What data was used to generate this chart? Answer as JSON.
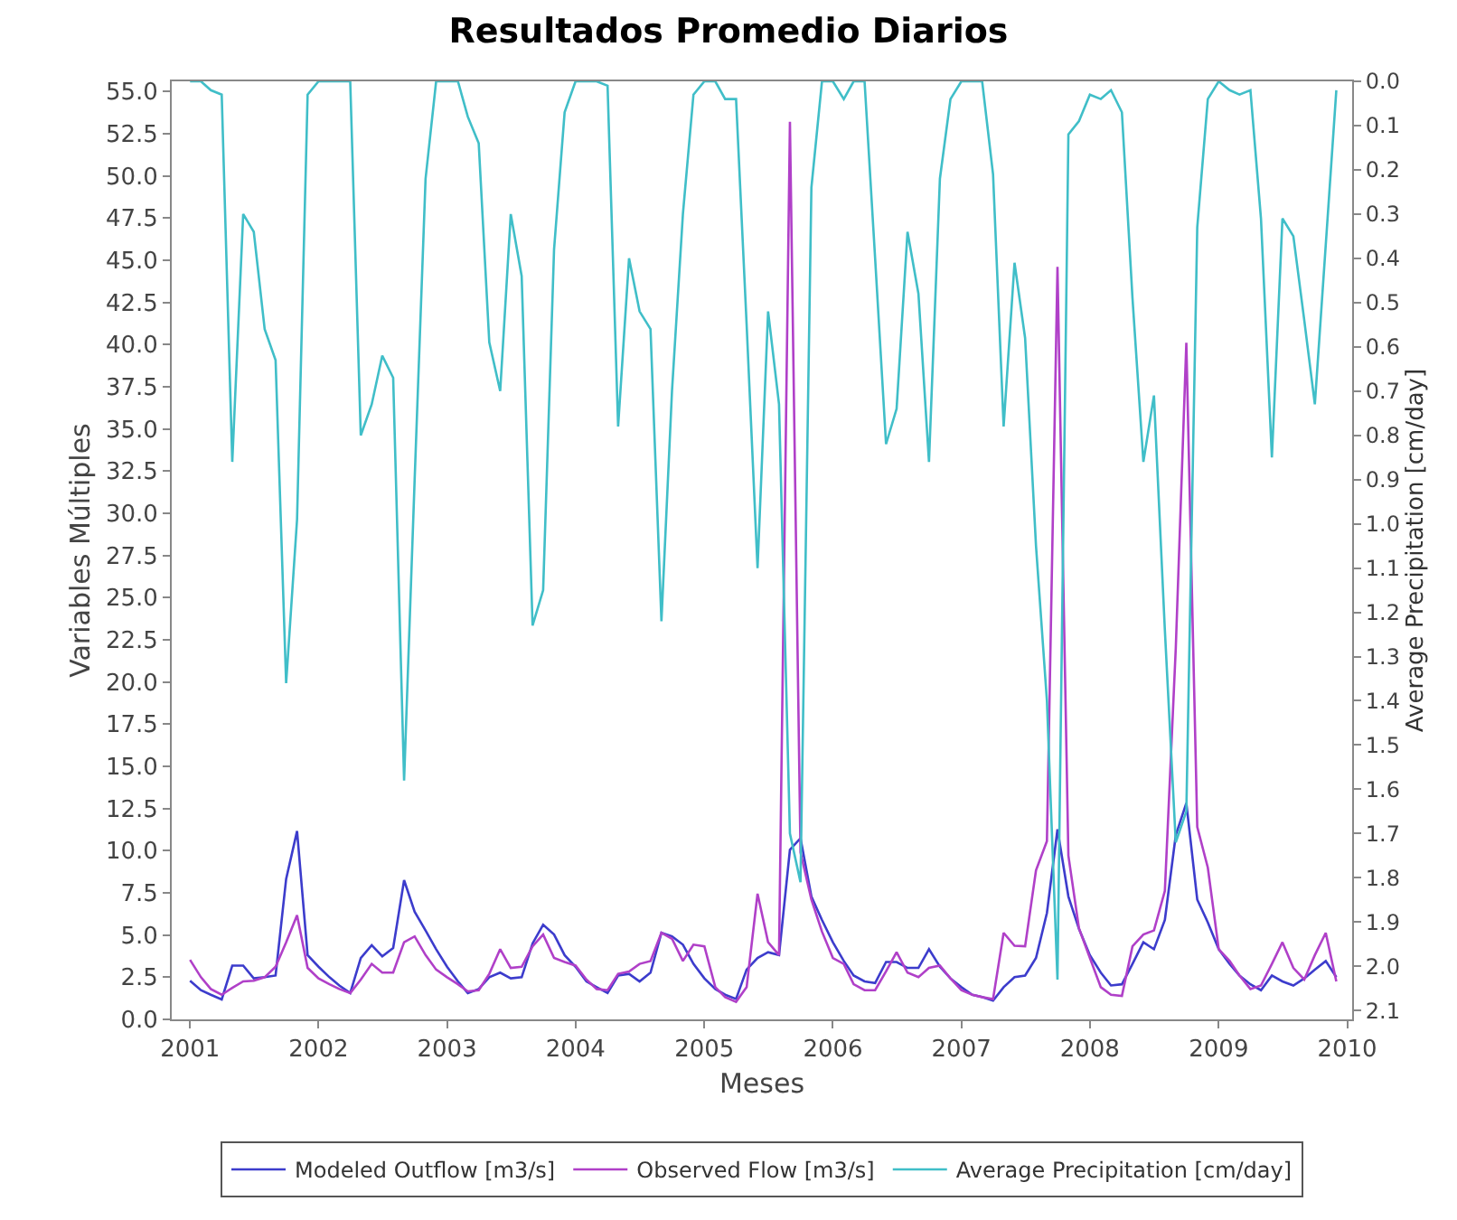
{
  "chart_data": {
    "type": "line",
    "title": "Resultados Promedio Diarios",
    "xlabel": "Meses",
    "ylabel": "Variables Múltiples",
    "y2label": "Average Precipitation [cm/day]",
    "x": [
      "2001-01",
      "2001-02",
      "2001-03",
      "2001-04",
      "2001-05",
      "2001-06",
      "2001-07",
      "2001-08",
      "2001-09",
      "2001-10",
      "2001-11",
      "2001-12",
      "2002-01",
      "2002-02",
      "2002-03",
      "2002-04",
      "2002-05",
      "2002-06",
      "2002-07",
      "2002-08",
      "2002-09",
      "2002-10",
      "2002-11",
      "2002-12",
      "2003-01",
      "2003-02",
      "2003-03",
      "2003-04",
      "2003-05",
      "2003-06",
      "2003-07",
      "2003-08",
      "2003-09",
      "2003-10",
      "2003-11",
      "2003-12",
      "2004-01",
      "2004-02",
      "2004-03",
      "2004-04",
      "2004-05",
      "2004-06",
      "2004-07",
      "2004-08",
      "2004-09",
      "2004-10",
      "2004-11",
      "2004-12",
      "2005-01",
      "2005-02",
      "2005-03",
      "2005-04",
      "2005-05",
      "2005-06",
      "2005-07",
      "2005-08",
      "2005-09",
      "2005-10",
      "2005-11",
      "2005-12",
      "2006-01",
      "2006-02",
      "2006-03",
      "2006-04",
      "2006-05",
      "2006-06",
      "2006-07",
      "2006-08",
      "2006-09",
      "2006-10",
      "2006-11",
      "2006-12",
      "2007-01",
      "2007-02",
      "2007-03",
      "2007-04",
      "2007-05",
      "2007-06",
      "2007-07",
      "2007-08",
      "2007-09",
      "2007-10",
      "2007-11",
      "2007-12",
      "2008-01",
      "2008-02",
      "2008-03",
      "2008-04",
      "2008-05",
      "2008-06",
      "2008-07",
      "2008-08",
      "2008-09",
      "2008-10",
      "2008-11",
      "2008-12",
      "2009-01",
      "2009-02",
      "2009-03",
      "2009-04",
      "2009-05",
      "2009-06",
      "2009-07",
      "2009-08",
      "2009-09",
      "2009-10",
      "2009-11",
      "2009-12"
    ],
    "series": [
      {
        "name": "Modeled Outflow [m3/s]",
        "color": "#3c3ccc",
        "values": [
          2.29,
          1.73,
          1.46,
          1.18,
          3.19,
          3.19,
          2.43,
          2.5,
          2.6,
          8.32,
          11.16,
          3.81,
          3.12,
          2.5,
          2.01,
          1.56,
          3.64,
          4.4,
          3.74,
          4.23,
          8.25,
          6.38,
          5.27,
          4.16,
          3.12,
          2.25,
          1.56,
          1.8,
          2.5,
          2.77,
          2.43,
          2.5,
          4.5,
          5.61,
          5.03,
          3.81,
          3.12,
          2.25,
          1.91,
          1.56,
          2.6,
          2.7,
          2.25,
          2.77,
          5.13,
          4.92,
          4.43,
          3.29,
          2.43,
          1.8,
          1.46,
          1.21,
          2.95,
          3.64,
          3.98,
          3.81,
          10.05,
          10.74,
          7.28,
          5.89,
          4.57,
          3.46,
          2.6,
          2.25,
          2.15,
          3.4,
          3.4,
          3.05,
          3.05,
          4.16,
          3.12,
          2.43,
          1.91,
          1.46,
          1.32,
          1.11,
          1.91,
          2.5,
          2.6,
          3.64,
          6.31,
          11.26,
          7.28,
          5.37,
          3.81,
          2.77,
          2.01,
          2.08,
          3.29,
          4.57,
          4.16,
          5.89,
          10.92,
          12.82,
          7.1,
          5.75,
          4.16,
          3.29,
          2.6,
          2.08,
          1.73,
          2.6,
          2.25,
          2.01,
          2.43,
          2.95,
          3.46,
          2.5
        ]
      },
      {
        "name": "Observed Flow [m3/s]",
        "color": "#b040c8",
        "values": [
          3.53,
          2.5,
          1.8,
          1.46,
          1.87,
          2.25,
          2.29,
          2.5,
          3.12,
          4.57,
          6.17,
          3.05,
          2.43,
          2.08,
          1.8,
          1.56,
          2.36,
          3.29,
          2.77,
          2.77,
          4.57,
          4.92,
          3.81,
          2.95,
          2.5,
          2.08,
          1.66,
          1.73,
          2.7,
          4.16,
          3.05,
          3.12,
          4.33,
          5.03,
          3.64,
          3.4,
          3.19,
          2.36,
          1.8,
          1.73,
          2.7,
          2.84,
          3.29,
          3.46,
          5.13,
          4.78,
          3.46,
          4.43,
          4.33,
          1.91,
          1.32,
          1.04,
          1.91,
          7.45,
          4.57,
          3.81,
          53.2,
          9.9,
          7.1,
          5.2,
          3.64,
          3.29,
          2.08,
          1.73,
          1.73,
          2.84,
          3.98,
          2.77,
          2.5,
          3.05,
          3.19,
          2.43,
          1.73,
          1.46,
          1.32,
          1.21,
          5.13,
          4.36,
          4.33,
          8.84,
          10.57,
          44.6,
          9.7,
          5.4,
          3.64,
          1.91,
          1.46,
          1.39,
          4.33,
          5.03,
          5.27,
          7.62,
          22,
          40.1,
          11.4,
          9.0,
          4.16,
          3.46,
          2.6,
          1.8,
          2.01,
          3.29,
          4.57,
          3.05,
          2.36,
          3.81,
          5.13,
          2.25
        ]
      },
      {
        "name": "Average Precipitation [cm/day]",
        "color": "#40bec8",
        "axis": "y2",
        "values": [
          0.0,
          0.0,
          0.02,
          0.03,
          0.86,
          0.3,
          0.34,
          0.56,
          0.63,
          1.36,
          0.99,
          0.03,
          0.0,
          0.0,
          0.0,
          0.0,
          0.8,
          0.73,
          0.62,
          0.67,
          1.58,
          0.9,
          0.22,
          0.0,
          0.0,
          0.0,
          0.08,
          0.14,
          0.59,
          0.7,
          0.3,
          0.44,
          1.23,
          1.15,
          0.38,
          0.07,
          0.0,
          0.0,
          0.0,
          0.01,
          0.78,
          0.4,
          0.52,
          0.56,
          1.22,
          0.7,
          0.3,
          0.03,
          0.0,
          0.0,
          0.04,
          0.04,
          0.55,
          1.1,
          0.52,
          0.73,
          1.7,
          1.81,
          0.24,
          0.0,
          0.0,
          0.04,
          0.0,
          0.0,
          0.4,
          0.82,
          0.74,
          0.34,
          0.48,
          0.86,
          0.22,
          0.04,
          0.0,
          0.0,
          0.0,
          0.21,
          0.78,
          0.41,
          0.58,
          1.05,
          1.4,
          2.03,
          0.12,
          0.09,
          0.03,
          0.04,
          0.02,
          0.07,
          0.49,
          0.86,
          0.71,
          1.24,
          1.72,
          1.65,
          0.33,
          0.04,
          0.0,
          0.02,
          0.03,
          0.02,
          0.31,
          0.85,
          0.31,
          0.35,
          0.54,
          0.73,
          0.37,
          0.02
        ]
      }
    ],
    "xlim": [
      "2000-11-10",
      "2010-01-15"
    ],
    "xticks": [
      {
        "value": "2001",
        "label": "2001"
      },
      {
        "value": "2002",
        "label": "2002"
      },
      {
        "value": "2003",
        "label": "2003"
      },
      {
        "value": "2004",
        "label": "2004"
      },
      {
        "value": "2005",
        "label": "2005"
      },
      {
        "value": "2006",
        "label": "2006"
      },
      {
        "value": "2007",
        "label": "2007"
      },
      {
        "value": "2008",
        "label": "2008"
      },
      {
        "value": "2009",
        "label": "2009"
      },
      {
        "value": "2010",
        "label": "2010"
      }
    ],
    "ylim": [
      0,
      55.6
    ],
    "yticks": [
      {
        "value": 0,
        "label": "0.0"
      },
      2.5,
      {
        "value": 5,
        "label": "5.0"
      },
      7.5,
      {
        "value": 10,
        "label": "10.0"
      },
      12.5,
      {
        "value": 15,
        "label": "15.0"
      },
      17.5,
      {
        "value": 20,
        "label": "20.0"
      },
      22.5,
      {
        "value": 25,
        "label": "25.0"
      },
      27.5,
      {
        "value": 30,
        "label": "30.0"
      },
      32.5,
      {
        "value": 35,
        "label": "35.0"
      },
      37.5,
      {
        "value": 40,
        "label": "40.0"
      },
      42.5,
      {
        "value": 45,
        "label": "45.0"
      },
      47.5,
      {
        "value": 50,
        "label": "50.0"
      },
      52.5,
      {
        "value": 55,
        "label": "55.0"
      }
    ],
    "y2lim": [
      2.12,
      0
    ],
    "y2ticks": [
      {
        "value": 0,
        "label": "0.0"
      },
      0.1,
      0.2,
      0.3,
      0.4,
      0.5,
      0.6,
      0.7,
      0.8,
      0.9,
      {
        "value": 1,
        "label": "1.0"
      },
      1.1,
      1.2,
      1.3,
      1.4,
      1.5,
      1.6,
      1.7,
      1.8,
      1.9,
      {
        "value": 2,
        "label": "2.0"
      },
      2.1
    ],
    "grid": false,
    "legend": "bottom",
    "marker": "none",
    "line_style": "solid"
  }
}
